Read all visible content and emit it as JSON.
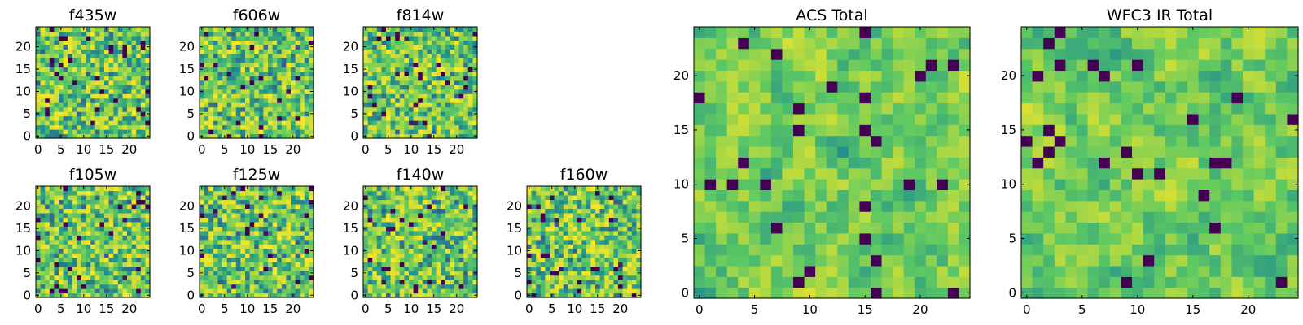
{
  "chart_data": [
    {
      "type": "heatmap",
      "title": "f435w",
      "xlim": [
        0,
        25
      ],
      "ylim": [
        0,
        25
      ],
      "xticks": [
        0,
        5,
        10,
        15,
        20
      ],
      "yticks": [
        0,
        5,
        10,
        15,
        20
      ],
      "grid": false,
      "colormap": "viridis"
    },
    {
      "type": "heatmap",
      "title": "f606w",
      "xlim": [
        0,
        25
      ],
      "ylim": [
        0,
        25
      ],
      "xticks": [
        0,
        5,
        10,
        15,
        20
      ],
      "yticks": [
        0,
        5,
        10,
        15,
        20
      ],
      "grid": false,
      "colormap": "viridis"
    },
    {
      "type": "heatmap",
      "title": "f814w",
      "xlim": [
        0,
        25
      ],
      "ylim": [
        0,
        25
      ],
      "xticks": [
        0,
        5,
        10,
        15,
        20
      ],
      "yticks": [
        0,
        5,
        10,
        15,
        20
      ],
      "grid": false,
      "colormap": "viridis"
    },
    {
      "type": "heatmap",
      "title": "f105w",
      "xlim": [
        0,
        25
      ],
      "ylim": [
        0,
        25
      ],
      "xticks": [
        0,
        5,
        10,
        15,
        20
      ],
      "yticks": [
        0,
        5,
        10,
        15,
        20
      ],
      "grid": false,
      "colormap": "viridis"
    },
    {
      "type": "heatmap",
      "title": "f125w",
      "xlim": [
        0,
        25
      ],
      "ylim": [
        0,
        25
      ],
      "xticks": [
        0,
        5,
        10,
        15,
        20
      ],
      "yticks": [
        0,
        5,
        10,
        15,
        20
      ],
      "grid": false,
      "colormap": "viridis"
    },
    {
      "type": "heatmap",
      "title": "f140w",
      "xlim": [
        0,
        25
      ],
      "ylim": [
        0,
        25
      ],
      "xticks": [
        0,
        5,
        10,
        15,
        20
      ],
      "yticks": [
        0,
        5,
        10,
        15,
        20
      ],
      "grid": false,
      "colormap": "viridis"
    },
    {
      "type": "heatmap",
      "title": "f160w",
      "xlim": [
        0,
        25
      ],
      "ylim": [
        0,
        25
      ],
      "xticks": [
        0,
        5,
        10,
        15,
        20
      ],
      "yticks": [
        0,
        5,
        10,
        15,
        20
      ],
      "grid": false,
      "colormap": "viridis"
    },
    {
      "type": "heatmap",
      "title": "ACS Total",
      "xlim": [
        0,
        25
      ],
      "ylim": [
        0,
        25
      ],
      "xticks": [
        0,
        5,
        10,
        15,
        20
      ],
      "yticks": [
        0,
        5,
        10,
        15,
        20
      ],
      "grid": false,
      "colormap": "viridis"
    },
    {
      "type": "heatmap",
      "title": "WFC3 IR Total",
      "xlim": [
        0,
        25
      ],
      "ylim": [
        0,
        25
      ],
      "xticks": [
        0,
        5,
        10,
        15,
        20
      ],
      "yticks": [
        0,
        5,
        10,
        15,
        20
      ],
      "grid": false,
      "colormap": "viridis"
    }
  ],
  "colors": {
    "colormap": [
      "#440154",
      "#3b528b",
      "#21918c",
      "#5ec962",
      "#fde725"
    ],
    "axes_edge": "#000000",
    "background": "#ffffff"
  }
}
